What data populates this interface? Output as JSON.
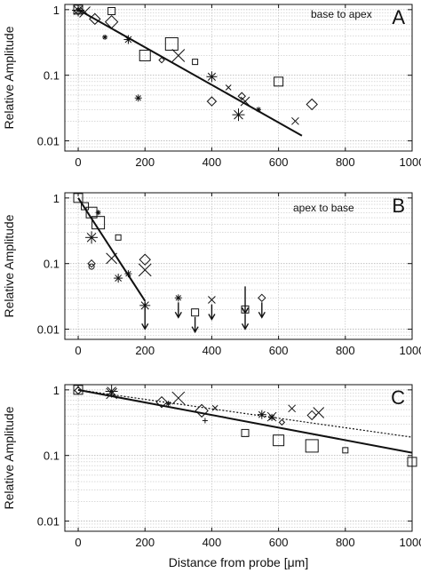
{
  "figure": {
    "xlabel": "Distance from probe [μm]",
    "colors": {
      "ink": "#111111",
      "grid": "#b5b5b5",
      "background": "#ffffff"
    }
  },
  "chart_data": [
    {
      "panel": "A",
      "type": "scatter",
      "annotation": "base to apex",
      "ylabel": "Relative Amplitude",
      "y_scale": "log",
      "xlim": [
        -40,
        1000
      ],
      "ylim": [
        0.007,
        1.2
      ],
      "x_ticks": [
        "0",
        "200",
        "400",
        "600",
        "800",
        "1000"
      ],
      "y_ticks": [
        "0.01",
        "0.1",
        "1"
      ],
      "grid": true,
      "fit_line": {
        "style": "solid",
        "points": [
          [
            0,
            1.0
          ],
          [
            670,
            0.012
          ]
        ]
      },
      "series": [
        {
          "marker": "square",
          "points": [
            [
              0,
              1.0
            ],
            [
              100,
              0.95
            ],
            [
              200,
              0.2
            ],
            [
              280,
              0.3
            ],
            [
              350,
              0.16
            ],
            [
              600,
              0.08
            ]
          ]
        },
        {
          "marker": "diamond",
          "points": [
            [
              0,
              0.95
            ],
            [
              50,
              0.72
            ],
            [
              100,
              0.65
            ],
            [
              250,
              0.17
            ],
            [
              400,
              0.04
            ],
            [
              490,
              0.048
            ],
            [
              700,
              0.036
            ]
          ]
        },
        {
          "marker": "x",
          "points": [
            [
              20,
              0.92
            ],
            [
              300,
              0.2
            ],
            [
              450,
              0.065
            ],
            [
              500,
              0.04
            ],
            [
              650,
              0.02
            ]
          ]
        },
        {
          "marker": "asterisk",
          "points": [
            [
              0,
              0.98
            ],
            [
              80,
              0.38
            ],
            [
              150,
              0.35
            ],
            [
              180,
              0.045
            ],
            [
              400,
              0.095
            ],
            [
              480,
              0.025
            ],
            [
              540,
              0.03
            ]
          ]
        }
      ]
    },
    {
      "panel": "B",
      "type": "scatter",
      "annotation": "apex to base",
      "ylabel": "Relative Amplitude",
      "y_scale": "log",
      "xlim": [
        -40,
        1000
      ],
      "ylim": [
        0.007,
        1.2
      ],
      "x_ticks": [
        "0",
        "200",
        "400",
        "600",
        "800",
        "1000"
      ],
      "y_ticks": [
        "0.01",
        "0.1",
        "1"
      ],
      "grid": true,
      "fit_line": {
        "style": "solid",
        "points": [
          [
            0,
            1.0
          ],
          [
            200,
            0.027
          ]
        ]
      },
      "series": [
        {
          "marker": "square",
          "points": [
            [
              0,
              1.0
            ],
            [
              20,
              0.75
            ],
            [
              40,
              0.6
            ],
            [
              60,
              0.42
            ],
            [
              120,
              0.25
            ]
          ]
        },
        {
          "marker": "diamond",
          "points": [
            [
              40,
              0.1
            ],
            [
              200,
              0.115
            ]
          ]
        },
        {
          "marker": "x",
          "points": [
            [
              100,
              0.12
            ],
            [
              200,
              0.08
            ]
          ]
        },
        {
          "marker": "asterisk",
          "points": [
            [
              40,
              0.25
            ],
            [
              60,
              0.6
            ],
            [
              120,
              0.06
            ],
            [
              150,
              0.07
            ],
            [
              200,
              0.023
            ]
          ]
        },
        {
          "marker": "circle",
          "points": [
            [
              40,
              0.09
            ]
          ]
        }
      ],
      "upper_limits": [
        {
          "marker": "none",
          "x": 200,
          "y": 0.02
        },
        {
          "marker": "asterisk",
          "x": 300,
          "y": 0.03
        },
        {
          "marker": "square",
          "x": 350,
          "y": 0.018
        },
        {
          "marker": "x",
          "x": 400,
          "y": 0.028
        },
        {
          "marker": "none",
          "x": 500,
          "y": 0.035
        },
        {
          "marker": "square",
          "x": 500,
          "y": 0.02
        },
        {
          "marker": "diamond",
          "x": 550,
          "y": 0.03
        }
      ]
    },
    {
      "panel": "C",
      "type": "scatter",
      "annotation": "",
      "ylabel": "Relative Amplitude",
      "xlabel": "Distance from probe [μm]",
      "y_scale": "log",
      "xlim": [
        -40,
        1000
      ],
      "ylim": [
        0.007,
        1.2
      ],
      "x_ticks": [
        "0",
        "200",
        "400",
        "600",
        "800",
        "1000"
      ],
      "y_ticks": [
        "0.01",
        "0.1",
        "1"
      ],
      "grid": true,
      "fit_line": {
        "style": "solid",
        "points": [
          [
            0,
            1.0
          ],
          [
            1000,
            0.11
          ]
        ]
      },
      "fit_line_2": {
        "style": "dotted",
        "points": [
          [
            0,
            1.0
          ],
          [
            1000,
            0.19
          ]
        ]
      },
      "series": [
        {
          "marker": "square",
          "points": [
            [
              0,
              1.0
            ],
            [
              500,
              0.22
            ],
            [
              600,
              0.17
            ],
            [
              700,
              0.14
            ],
            [
              800,
              0.12
            ],
            [
              1000,
              0.08
            ]
          ]
        },
        {
          "marker": "diamond",
          "points": [
            [
              0,
              0.98
            ],
            [
              250,
              0.65
            ],
            [
              370,
              0.48
            ],
            [
              610,
              0.32
            ],
            [
              700,
              0.41
            ]
          ]
        },
        {
          "marker": "x",
          "points": [
            [
              100,
              0.88
            ],
            [
              300,
              0.75
            ],
            [
              410,
              0.53
            ],
            [
              580,
              0.39
            ],
            [
              640,
              0.52
            ],
            [
              720,
              0.45
            ]
          ]
        },
        {
          "marker": "asterisk",
          "points": [
            [
              100,
              0.95
            ],
            [
              270,
              0.62
            ],
            [
              550,
              0.42
            ],
            [
              580,
              0.38
            ]
          ]
        },
        {
          "marker": "plus",
          "points": [
            [
              380,
              0.34
            ]
          ]
        }
      ]
    }
  ]
}
